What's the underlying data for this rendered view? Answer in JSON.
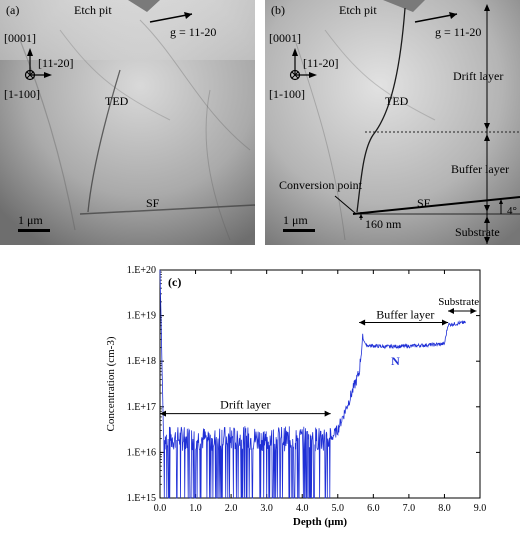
{
  "panel_a": {
    "label": "(a)",
    "etch_pit": "Etch pit",
    "g_vector": "g = 11-20",
    "dir_0001": "[0001]",
    "dir_11_20": "[11-20]",
    "dir_1_100": "[1-100]",
    "ted": "TED",
    "sf": "SF",
    "scale": "1 μm"
  },
  "panel_b": {
    "label": "(b)",
    "etch_pit": "Etch pit",
    "g_vector": "g = 11-20",
    "dir_0001": "[0001]",
    "dir_11_20": "[11-20]",
    "dir_1_100": "[1-100]",
    "ted": "TED",
    "sf": "SF",
    "scale": "1 μm",
    "drift_layer": "Drift layer",
    "buffer_layer": "Buffer layer",
    "substrate": "Substrate",
    "conversion_point": "Conversion point",
    "distance": "160 nm",
    "angle": "4°"
  },
  "chart_data": {
    "type": "line",
    "panel_label": "(c)",
    "xlabel": "Depth (μm)",
    "ylabel": "Concentration (cm-3)",
    "xlim": [
      0.0,
      9.0
    ],
    "xticks": [
      "0.0",
      "1.0",
      "2.0",
      "3.0",
      "4.0",
      "5.0",
      "6.0",
      "7.0",
      "8.0",
      "9.0"
    ],
    "ylim_exp": [
      15,
      20
    ],
    "yticks": [
      "1.E+15",
      "1.E+16",
      "1.E+17",
      "1.E+18",
      "1.E+19",
      "1.E+20"
    ],
    "log_scale_y": true,
    "series": [
      {
        "name": "N",
        "color": "#1f2fd6",
        "profile": [
          [
            0.0,
            20.0
          ],
          [
            0.1,
            16.3
          ],
          [
            4.8,
            16.3
          ],
          [
            5.0,
            16.5
          ],
          [
            5.3,
            17.1
          ],
          [
            5.6,
            17.75
          ],
          [
            5.7,
            18.5
          ],
          [
            5.8,
            18.35
          ],
          [
            6.3,
            18.32
          ],
          [
            7.0,
            18.33
          ],
          [
            8.0,
            18.38
          ],
          [
            8.1,
            18.8
          ],
          [
            8.6,
            18.85
          ]
        ]
      }
    ],
    "annotations": {
      "drift_layer": "Drift layer",
      "buffer_layer": "Buffer layer",
      "substrate": "Substrate"
    }
  }
}
